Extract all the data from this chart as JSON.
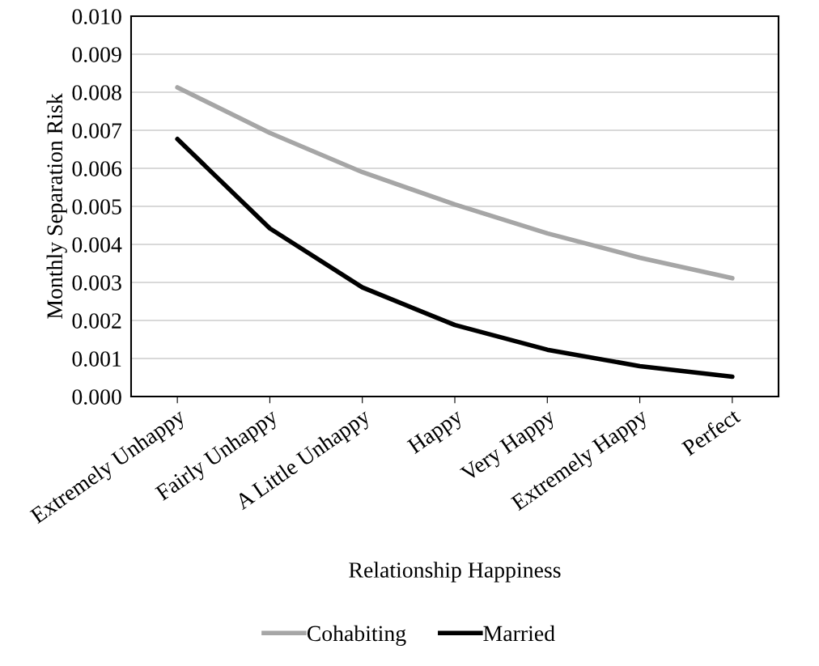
{
  "chart_data": {
    "type": "line",
    "xlabel": "Relationship Happiness",
    "ylabel": "Monthly Separation Risk",
    "categories": [
      "Extremely Unhappy",
      "Fairly Unhappy",
      "A Little Unhappy",
      "Happy",
      "Very Happy",
      "Extremely Happy",
      "Perfect"
    ],
    "series": [
      {
        "name": "Cohabiting",
        "color": "#a6a6a6",
        "values": [
          0.00813,
          0.00693,
          0.0059,
          0.00505,
          0.00429,
          0.00365,
          0.00311
        ]
      },
      {
        "name": "Married",
        "color": "#000000",
        "values": [
          0.00677,
          0.00442,
          0.00287,
          0.00188,
          0.00123,
          0.0008,
          0.00052
        ]
      }
    ],
    "ylim": [
      0,
      0.01
    ],
    "yticks": [
      {
        "value": 0,
        "label": "0.000"
      },
      {
        "value": 0.001,
        "label": "0.001"
      },
      {
        "value": 0.002,
        "label": "0.002"
      },
      {
        "value": 0.003,
        "label": "0.003"
      },
      {
        "value": 0.004,
        "label": "0.004"
      },
      {
        "value": 0.005,
        "label": "0.005"
      },
      {
        "value": 0.006,
        "label": "0.006"
      },
      {
        "value": 0.007,
        "label": "0.007"
      },
      {
        "value": 0.008,
        "label": "0.008"
      },
      {
        "value": 0.009,
        "label": "0.009"
      },
      {
        "value": 0.01,
        "label": "0.010"
      }
    ],
    "grid": "y",
    "legend": "bottom",
    "marker": "none",
    "line_style": "solid"
  }
}
